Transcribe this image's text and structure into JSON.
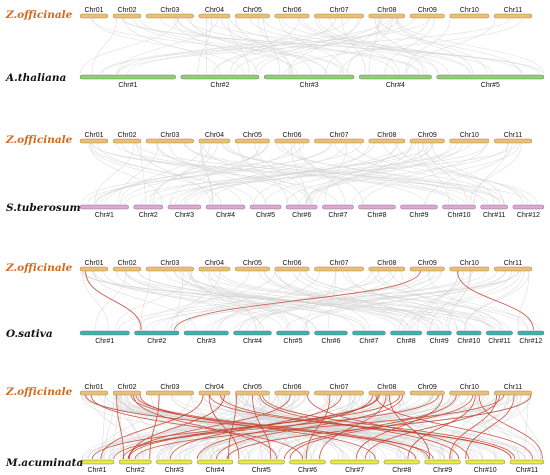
{
  "colors": {
    "zingiber": "#e8c07a",
    "zingiber_stroke": "#b5893f",
    "species_highlight": "#d2691e",
    "species_default": "#111111",
    "background_link": "#d6d6d6",
    "highlight_link": "#c8412f",
    "a_thaliana": "#8fd170",
    "s_tuberosum": "#e3a6d8",
    "o_sativa": "#3fb2b0",
    "m_acuminata": "#eaea3a"
  },
  "panels": [
    {
      "top_species": "Z.officinale",
      "top_chromosomes": [
        "Chr01",
        "Chr02",
        "Chr03",
        "Chr04",
        "Chr05",
        "Chr06",
        "Chr07",
        "Chr08",
        "Chr09",
        "Chr10",
        "Chr11"
      ],
      "bottom_species": "A.thaliana",
      "bottom_color": "a_thaliana",
      "bottom_chromosomes": [
        "Chr#1",
        "Chr#2",
        "Chr#3",
        "Chr#4",
        "Chr#5"
      ],
      "highlight_links": 0
    },
    {
      "top_species": "Z.officinale",
      "top_chromosomes": [
        "Chr01",
        "Chr02",
        "Chr03",
        "Chr04",
        "Chr05",
        "Chr06",
        "Chr07",
        "Chr08",
        "Chr09",
        "Chr10",
        "Chr11"
      ],
      "bottom_species": "S.tuberosum",
      "bottom_color": "s_tuberosum",
      "bottom_chromosomes": [
        "Chr#1",
        "Chr#2",
        "Chr#3",
        "Chr#4",
        "Chr#5",
        "Chr#6",
        "Chr#7",
        "Chr#8",
        "Chr#9",
        "Chr#10",
        "Chr#11",
        "Chr#12"
      ],
      "highlight_links": 0
    },
    {
      "top_species": "Z.officinale",
      "top_chromosomes": [
        "Chr01",
        "Chr02",
        "Chr03",
        "Chr04",
        "Chr05",
        "Chr06",
        "Chr07",
        "Chr08",
        "Chr09",
        "Chr10",
        "Chr11"
      ],
      "bottom_species": "O.sativa",
      "bottom_color": "o_sativa",
      "bottom_chromosomes": [
        "Chr#1",
        "Chr#2",
        "Chr#3",
        "Chr#4",
        "Chr#5",
        "Chr#6",
        "Chr#7",
        "Chr#8",
        "Chr#9",
        "Chr#10",
        "Chr#11",
        "Chr#12"
      ],
      "highlight_links": 3
    },
    {
      "top_species": "Z.officinale",
      "top_chromosomes": [
        "Chr01",
        "Chr02",
        "Chr03",
        "Chr04",
        "Chr05",
        "Chr06",
        "Chr07",
        "Chr08",
        "Chr09",
        "Chr10",
        "Chr11"
      ],
      "bottom_species": "M.acuminata",
      "bottom_color": "m_acuminata",
      "bottom_chromosomes": [
        "Chr#1",
        "Chr#2",
        "Chr#3",
        "Chr#4",
        "Chr#5",
        "Chr#6",
        "Chr#7",
        "Chr#8",
        "Chr#9",
        "Chr#10",
        "Chr#11"
      ],
      "highlight_links": 40
    }
  ]
}
